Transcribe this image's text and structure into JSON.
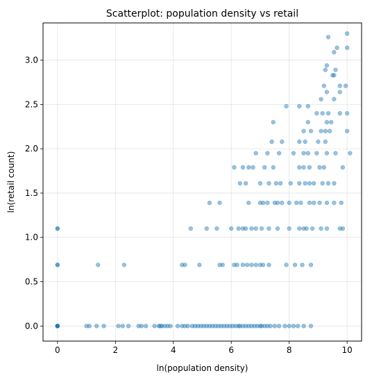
{
  "chart_data": {
    "type": "scatter",
    "title": "Scatterplot: population density vs retail",
    "xlabel": "ln(population density)",
    "ylabel": "ln(retail count)",
    "xlim": [
      -0.5,
      10.5
    ],
    "ylim": [
      -0.17,
      3.42
    ],
    "xticks": [
      0,
      2,
      4,
      6,
      8,
      10
    ],
    "xtick_labels": [
      "0",
      "2",
      "4",
      "6",
      "8",
      "10"
    ],
    "yticks": [
      0.0,
      0.5,
      1.0,
      1.5,
      2.0,
      2.5,
      3.0
    ],
    "ytick_labels": [
      "0.0",
      "0.5",
      "1.0",
      "1.5",
      "2.0",
      "2.5",
      "3.0"
    ],
    "grid": true,
    "point_color": "#1f77b4",
    "point_alpha": 0.45,
    "series": [
      {
        "points": [
          [
            0,
            0
          ],
          [
            0,
            0
          ],
          [
            0,
            0
          ],
          [
            0,
            0
          ],
          [
            0,
            0
          ],
          [
            0,
            0
          ],
          [
            0,
            0.69
          ],
          [
            0,
            0.69
          ],
          [
            0,
            1.1
          ],
          [
            0,
            1.1
          ],
          [
            1.0,
            0
          ],
          [
            1.1,
            0
          ],
          [
            1.35,
            0
          ],
          [
            1.6,
            0
          ],
          [
            2.1,
            0
          ],
          [
            2.25,
            0
          ],
          [
            2.45,
            0
          ],
          [
            2.8,
            0
          ],
          [
            2.9,
            0
          ],
          [
            3.05,
            0
          ],
          [
            3.35,
            0
          ],
          [
            3.5,
            0
          ],
          [
            3.55,
            0
          ],
          [
            3.6,
            0
          ],
          [
            3.7,
            0
          ],
          [
            3.8,
            0
          ],
          [
            3.9,
            0
          ],
          [
            4.15,
            0
          ],
          [
            4.3,
            0
          ],
          [
            4.4,
            0
          ],
          [
            4.5,
            0
          ],
          [
            4.65,
            0
          ],
          [
            4.75,
            0
          ],
          [
            4.85,
            0
          ],
          [
            4.95,
            0
          ],
          [
            5.05,
            0
          ],
          [
            5.15,
            0
          ],
          [
            5.25,
            0
          ],
          [
            5.35,
            0
          ],
          [
            5.45,
            0
          ],
          [
            5.55,
            0
          ],
          [
            5.65,
            0
          ],
          [
            5.75,
            0
          ],
          [
            5.85,
            0
          ],
          [
            5.95,
            0
          ],
          [
            6.05,
            0
          ],
          [
            6.15,
            0
          ],
          [
            6.25,
            0
          ],
          [
            6.3,
            0
          ],
          [
            6.4,
            0
          ],
          [
            6.5,
            0
          ],
          [
            6.6,
            0
          ],
          [
            6.7,
            0
          ],
          [
            6.8,
            0
          ],
          [
            6.9,
            0
          ],
          [
            7.0,
            0
          ],
          [
            7.05,
            0
          ],
          [
            7.15,
            0
          ],
          [
            7.25,
            0
          ],
          [
            7.35,
            0
          ],
          [
            7.5,
            0
          ],
          [
            7.65,
            0
          ],
          [
            7.85,
            0
          ],
          [
            8.0,
            0
          ],
          [
            8.15,
            0
          ],
          [
            8.3,
            0
          ],
          [
            8.5,
            0
          ],
          [
            8.75,
            0
          ],
          [
            1.4,
            0.69
          ],
          [
            2.3,
            0.69
          ],
          [
            4.3,
            0.69
          ],
          [
            4.4,
            0.69
          ],
          [
            4.9,
            0.69
          ],
          [
            5.6,
            0.69
          ],
          [
            5.7,
            0.69
          ],
          [
            6.1,
            0.69
          ],
          [
            6.2,
            0.69
          ],
          [
            6.4,
            0.69
          ],
          [
            6.55,
            0.69
          ],
          [
            6.7,
            0.69
          ],
          [
            6.85,
            0.69
          ],
          [
            7.0,
            0.69
          ],
          [
            7.1,
            0.69
          ],
          [
            7.3,
            0.69
          ],
          [
            7.9,
            0.69
          ],
          [
            8.2,
            0.69
          ],
          [
            8.45,
            0.69
          ],
          [
            8.75,
            0.69
          ],
          [
            4.6,
            1.1
          ],
          [
            5.15,
            1.1
          ],
          [
            5.5,
            1.1
          ],
          [
            6.0,
            1.1
          ],
          [
            6.25,
            1.1
          ],
          [
            6.4,
            1.1
          ],
          [
            6.5,
            1.1
          ],
          [
            6.7,
            1.1
          ],
          [
            6.85,
            1.1
          ],
          [
            7.05,
            1.1
          ],
          [
            7.3,
            1.1
          ],
          [
            7.6,
            1.1
          ],
          [
            8.0,
            1.1
          ],
          [
            8.35,
            1.1
          ],
          [
            8.5,
            1.1
          ],
          [
            8.6,
            1.1
          ],
          [
            8.8,
            1.1
          ],
          [
            9.1,
            1.1
          ],
          [
            9.3,
            1.1
          ],
          [
            9.75,
            1.1
          ],
          [
            9.85,
            1.1
          ],
          [
            5.25,
            1.39
          ],
          [
            5.6,
            1.39
          ],
          [
            6.6,
            1.39
          ],
          [
            7.0,
            1.39
          ],
          [
            7.1,
            1.39
          ],
          [
            7.25,
            1.39
          ],
          [
            7.5,
            1.39
          ],
          [
            7.6,
            1.39
          ],
          [
            7.75,
            1.39
          ],
          [
            8.0,
            1.39
          ],
          [
            8.25,
            1.39
          ],
          [
            8.4,
            1.39
          ],
          [
            8.7,
            1.39
          ],
          [
            8.85,
            1.39
          ],
          [
            9.05,
            1.39
          ],
          [
            9.3,
            1.39
          ],
          [
            9.55,
            1.39
          ],
          [
            9.8,
            1.39
          ],
          [
            6.3,
            1.61
          ],
          [
            6.5,
            1.61
          ],
          [
            7.0,
            1.61
          ],
          [
            7.3,
            1.61
          ],
          [
            7.55,
            1.61
          ],
          [
            7.7,
            1.61
          ],
          [
            8.05,
            1.61
          ],
          [
            8.35,
            1.61
          ],
          [
            8.55,
            1.61
          ],
          [
            8.7,
            1.61
          ],
          [
            8.85,
            1.61
          ],
          [
            9.15,
            1.61
          ],
          [
            9.35,
            1.61
          ],
          [
            9.55,
            1.61
          ],
          [
            6.1,
            1.79
          ],
          [
            6.4,
            1.79
          ],
          [
            6.6,
            1.79
          ],
          [
            6.75,
            1.79
          ],
          [
            7.15,
            1.79
          ],
          [
            7.45,
            1.79
          ],
          [
            8.35,
            1.79
          ],
          [
            8.5,
            1.79
          ],
          [
            8.7,
            1.79
          ],
          [
            9.05,
            1.79
          ],
          [
            9.2,
            1.79
          ],
          [
            9.85,
            1.79
          ],
          [
            6.85,
            1.95
          ],
          [
            7.25,
            1.95
          ],
          [
            7.65,
            1.95
          ],
          [
            8.15,
            1.95
          ],
          [
            8.5,
            1.95
          ],
          [
            8.65,
            1.95
          ],
          [
            8.95,
            1.95
          ],
          [
            9.3,
            1.95
          ],
          [
            9.6,
            1.95
          ],
          [
            10.1,
            1.95
          ],
          [
            7.4,
            2.08
          ],
          [
            7.75,
            2.08
          ],
          [
            8.35,
            2.08
          ],
          [
            8.55,
            2.08
          ],
          [
            9.0,
            2.08
          ],
          [
            9.25,
            2.08
          ],
          [
            8.5,
            2.2
          ],
          [
            8.75,
            2.2
          ],
          [
            9.1,
            2.2
          ],
          [
            9.25,
            2.2
          ],
          [
            9.4,
            2.2
          ],
          [
            10.0,
            2.2
          ],
          [
            7.45,
            2.3
          ],
          [
            8.65,
            2.3
          ],
          [
            9.3,
            2.3
          ],
          [
            9.45,
            2.3
          ],
          [
            8.95,
            2.4
          ],
          [
            9.15,
            2.4
          ],
          [
            9.35,
            2.4
          ],
          [
            9.75,
            2.4
          ],
          [
            10.0,
            2.4
          ],
          [
            7.9,
            2.48
          ],
          [
            8.35,
            2.48
          ],
          [
            8.65,
            2.48
          ],
          [
            9.1,
            2.56
          ],
          [
            9.55,
            2.56
          ],
          [
            9.3,
            2.64
          ],
          [
            9.75,
            2.64
          ],
          [
            9.2,
            2.71
          ],
          [
            9.75,
            2.71
          ],
          [
            9.95,
            2.71
          ],
          [
            9.5,
            2.83
          ],
          [
            9.55,
            2.83
          ],
          [
            9.25,
            2.89
          ],
          [
            9.6,
            2.89
          ],
          [
            9.3,
            2.94
          ],
          [
            9.55,
            3.09
          ],
          [
            9.65,
            3.14
          ],
          [
            10.0,
            3.14
          ],
          [
            9.35,
            3.26
          ],
          [
            10.0,
            3.3
          ]
        ]
      }
    ]
  }
}
